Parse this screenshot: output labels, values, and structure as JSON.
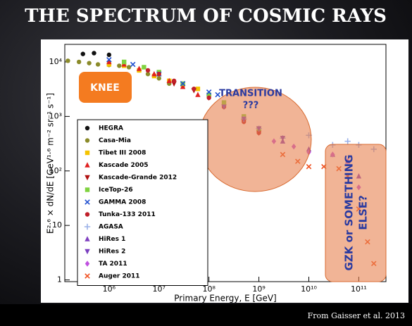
{
  "chart_data": {
    "type": "scatter",
    "title": "THE SPECTRUM OF COSMIC RAYS",
    "source": "From Gaisser et al. 2013",
    "x_label": "Primary Energy, E [GeV]",
    "y_label": "E²·⁶ × dN/dE [GeV¹·⁶ m⁻² sr⁻¹ s⁻¹]",
    "log_x": true,
    "log_y": true,
    "xlim": [
      130000,
      350000000000
    ],
    "ylim": [
      0.93,
      21000
    ],
    "xticks": [
      {
        "value": 1000000,
        "label": "10⁶"
      },
      {
        "value": 10000000,
        "label": "10⁷"
      },
      {
        "value": 100000000,
        "label": "10⁸"
      },
      {
        "value": 1000000000,
        "label": "10⁹"
      },
      {
        "value": 10000000000,
        "label": "10¹⁰"
      },
      {
        "value": 100000000000,
        "label": "10¹¹"
      }
    ],
    "yticks": [
      1,
      10,
      {
        "value": 100,
        "label": "10²"
      },
      {
        "value": 1000,
        "label": "10³"
      },
      {
        "value": 10000,
        "label": "10⁴"
      }
    ],
    "annotations": {
      "knee": "KNEE",
      "transition": [
        "TRANSITION",
        "???"
      ],
      "gzk": [
        "GZK or SOMETHING",
        "ELSE?"
      ]
    },
    "series": [
      {
        "name": "HEGRA",
        "color": "#111111",
        "marker": "circle",
        "x": [
          300000,
          500000,
          1000000
        ],
        "values": [
          14000,
          14500,
          13500
        ]
      },
      {
        "name": "Casa-Mia",
        "color": "#8b8b2a",
        "marker": "circle",
        "x": [
          150000,
          250000,
          400000,
          600000,
          1000000,
          1600000,
          2500000,
          4000000,
          6000000,
          10000000,
          16000000
        ],
        "values": [
          10500,
          10000,
          9500,
          9000,
          8800,
          8500,
          8000,
          7000,
          6000,
          5000,
          4000
        ]
      },
      {
        "name": "Tibet III 2008",
        "color": "#f5c400",
        "marker": "square",
        "x": [
          1000000,
          2000000,
          4000000,
          8000000,
          16000000,
          30000000,
          60000000
        ],
        "values": [
          9000,
          8500,
          7000,
          5500,
          4500,
          3800,
          3200
        ]
      },
      {
        "name": "Kascade 2005",
        "color": "#e02020",
        "marker": "triangle",
        "x": [
          1000000,
          2000000,
          4000000,
          8000000,
          16000000,
          30000000,
          60000000
        ],
        "values": [
          10000,
          9000,
          7500,
          6000,
          4500,
          3500,
          2500
        ]
      },
      {
        "name": "Kascade-Grande 2012",
        "color": "#b01010",
        "marker": "triangle-down",
        "x": [
          20000000,
          50000000,
          100000000,
          200000000,
          500000000,
          1000000000
        ],
        "values": [
          4000,
          3000,
          2200,
          1500,
          800,
          500
        ]
      },
      {
        "name": "IceTop-26",
        "color": "#7fd23f",
        "marker": "square",
        "x": [
          2000000,
          5000000,
          10000000,
          30000000,
          100000000,
          200000000,
          500000000,
          1000000000
        ],
        "values": [
          10000,
          8000,
          6500,
          4000,
          2500,
          1800,
          1000,
          600
        ]
      },
      {
        "name": "GAMMA 2008",
        "color": "#2050d0",
        "marker": "x",
        "x": [
          1000000,
          3000000,
          10000000,
          30000000,
          100000000,
          150000000
        ],
        "values": [
          11000,
          9000,
          6000,
          4000,
          2800,
          2500
        ]
      },
      {
        "name": "Tunka-133 2011",
        "color": "#c0202a",
        "marker": "circle",
        "x": [
          6000000,
          10000000,
          20000000,
          50000000,
          100000000,
          200000000,
          500000000,
          1000000000
        ],
        "values": [
          7000,
          6000,
          4500,
          3200,
          2200,
          1500,
          800,
          500
        ]
      },
      {
        "name": "AGASA",
        "color": "#9ab0e8",
        "marker": "plus",
        "x": [
          500000000,
          1000000000,
          3000000000,
          10000000000,
          30000000000,
          60000000000,
          100000000000,
          200000000000
        ],
        "values": [
          900,
          600,
          400,
          450,
          300,
          350,
          300,
          250
        ]
      },
      {
        "name": "HiRes 1",
        "color": "#8040c0",
        "marker": "triangle",
        "x": [
          3000000000,
          10000000000,
          30000000000,
          60000000000,
          100000000000
        ],
        "values": [
          350,
          250,
          200,
          150,
          80
        ]
      },
      {
        "name": "HiRes 2",
        "color": "#7a3fbf",
        "marker": "triangle-down",
        "x": [
          200000000,
          500000000,
          1000000000,
          3000000000
        ],
        "values": [
          1500,
          900,
          600,
          400
        ]
      },
      {
        "name": "TA 2011",
        "color": "#c050e0",
        "marker": "diamond",
        "x": [
          2000000000,
          5000000000,
          10000000000,
          30000000000,
          60000000000,
          100000000000
        ],
        "values": [
          350,
          280,
          220,
          200,
          150,
          50
        ]
      },
      {
        "name": "Auger 2011",
        "color": "#f05020",
        "marker": "x",
        "x": [
          3000000000,
          6000000000,
          10000000000,
          20000000000,
          40000000000,
          60000000000,
          100000000000,
          150000000000,
          200000000000
        ],
        "values": [
          200,
          150,
          120,
          120,
          110,
          80,
          20,
          5,
          2
        ]
      }
    ]
  }
}
